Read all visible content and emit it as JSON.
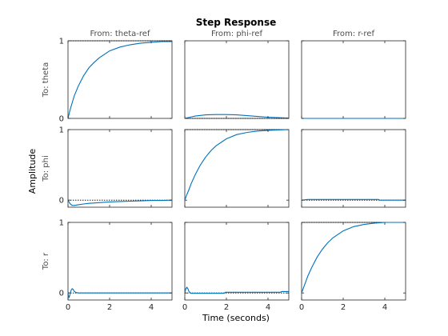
{
  "figure": {
    "title": "Step Response",
    "xlabel": "Time (seconds)",
    "ylabel": "Amplitude"
  },
  "chart_data": {
    "type": "line",
    "layout": "3x3 subplot grid",
    "title": "Step Response",
    "xlabel": "Time (seconds)",
    "ylabel": "Amplitude",
    "columns": [
      "From: theta-ref",
      "From: phi-ref",
      "From: r-ref"
    ],
    "rows": [
      "To: theta",
      "To: phi",
      "To: r"
    ],
    "xlim": [
      0,
      5
    ],
    "xticks": [
      0,
      2,
      4
    ],
    "x_tick_labels": [
      "0",
      "2",
      "4"
    ],
    "y_tick_labels_by_row": [
      [
        "0",
        "1"
      ],
      [
        "0",
        "1"
      ],
      [
        "0",
        "1"
      ]
    ],
    "line_color": "#0072bd",
    "reference_line_style": "dotted black",
    "subplots": [
      {
        "row": 0,
        "col": 0,
        "ylim": [
          0,
          1
        ],
        "yticks": [
          0,
          1
        ],
        "ref": 1,
        "x": [
          0,
          0.1,
          0.2,
          0.3,
          0.5,
          0.75,
          1,
          1.25,
          1.5,
          2,
          2.5,
          3,
          3.5,
          4,
          4.5,
          5
        ],
        "y": [
          0,
          0.11,
          0.2,
          0.29,
          0.42,
          0.55,
          0.65,
          0.72,
          0.78,
          0.87,
          0.92,
          0.95,
          0.97,
          0.98,
          0.99,
          0.99
        ]
      },
      {
        "row": 0,
        "col": 1,
        "ylim": [
          0,
          1
        ],
        "yticks": [
          0,
          1
        ],
        "ref": 0,
        "x": [
          0,
          0.25,
          0.5,
          1,
          1.5,
          2,
          2.5,
          3,
          3.5,
          4,
          4.5,
          5
        ],
        "y": [
          0,
          0.015,
          0.03,
          0.045,
          0.05,
          0.05,
          0.045,
          0.035,
          0.025,
          0.015,
          0.01,
          0.005
        ]
      },
      {
        "row": 0,
        "col": 2,
        "ylim": [
          0,
          1
        ],
        "yticks": [
          0,
          1
        ],
        "ref": 0,
        "x": [
          0,
          1,
          2,
          3,
          4,
          5
        ],
        "y": [
          0,
          0,
          0,
          0,
          0,
          0
        ]
      },
      {
        "row": 1,
        "col": 0,
        "ylim": [
          -0.1,
          1
        ],
        "yticks": [
          0,
          1
        ],
        "ref": 0,
        "x": [
          0,
          0.1,
          0.2,
          0.3,
          0.5,
          0.75,
          1,
          1.5,
          2,
          2.5,
          3,
          3.5,
          4,
          4.5,
          5
        ],
        "y": [
          0,
          -0.05,
          -0.075,
          -0.075,
          -0.065,
          -0.055,
          -0.045,
          -0.035,
          -0.025,
          -0.02,
          -0.015,
          -0.01,
          -0.005,
          -0.005,
          0
        ]
      },
      {
        "row": 1,
        "col": 1,
        "ylim": [
          -0.1,
          1
        ],
        "yticks": [
          0,
          1
        ],
        "ref": 1,
        "x": [
          0,
          0.1,
          0.2,
          0.3,
          0.5,
          0.75,
          1,
          1.25,
          1.5,
          2,
          2.5,
          3,
          3.5,
          4,
          4.5,
          5
        ],
        "y": [
          0,
          0.08,
          0.15,
          0.23,
          0.36,
          0.5,
          0.61,
          0.7,
          0.77,
          0.87,
          0.93,
          0.96,
          0.98,
          0.99,
          0.995,
          1
        ]
      },
      {
        "row": 1,
        "col": 2,
        "ylim": [
          -0.1,
          1
        ],
        "yticks": [
          0,
          1
        ],
        "ref": 0,
        "x": [
          0,
          0.3,
          1,
          2,
          3,
          3.7,
          3.75,
          5
        ],
        "y": [
          0,
          0.01,
          0.01,
          0.01,
          0.01,
          0.01,
          0,
          0
        ]
      },
      {
        "row": 2,
        "col": 0,
        "ylim": [
          -0.1,
          1
        ],
        "yticks": [
          0,
          1
        ],
        "ref": 0,
        "x": [
          0,
          0.05,
          0.1,
          0.15,
          0.2,
          0.25,
          0.3,
          0.4,
          0.5,
          0.6,
          1,
          2,
          3,
          4,
          5
        ],
        "y": [
          0,
          -0.07,
          -0.02,
          0.04,
          0.06,
          0.05,
          0.02,
          0.005,
          0,
          0,
          0,
          0,
          0,
          0,
          0
        ]
      },
      {
        "row": 2,
        "col": 1,
        "ylim": [
          -0.1,
          1
        ],
        "yticks": [
          0,
          1
        ],
        "ref": 0,
        "x": [
          0,
          0.05,
          0.1,
          0.15,
          0.2,
          0.25,
          0.3,
          0.4,
          0.5,
          1,
          1.9,
          1.95,
          3,
          4,
          4.6,
          4.65,
          5
        ],
        "y": [
          0,
          0.06,
          0.08,
          0.06,
          0.02,
          0.005,
          -0.005,
          -0.005,
          -0.005,
          -0.005,
          -0.005,
          0.01,
          0.01,
          0.01,
          0.01,
          0.02,
          0.02
        ]
      },
      {
        "row": 2,
        "col": 2,
        "ylim": [
          -0.1,
          1
        ],
        "yticks": [
          0,
          1
        ],
        "ref": 1,
        "x": [
          0,
          0.1,
          0.2,
          0.3,
          0.5,
          0.75,
          1,
          1.25,
          1.5,
          2,
          2.5,
          3,
          3.5,
          4,
          5
        ],
        "y": [
          0,
          0.08,
          0.16,
          0.24,
          0.37,
          0.51,
          0.62,
          0.71,
          0.78,
          0.88,
          0.94,
          0.97,
          0.99,
          1,
          1
        ]
      }
    ]
  }
}
